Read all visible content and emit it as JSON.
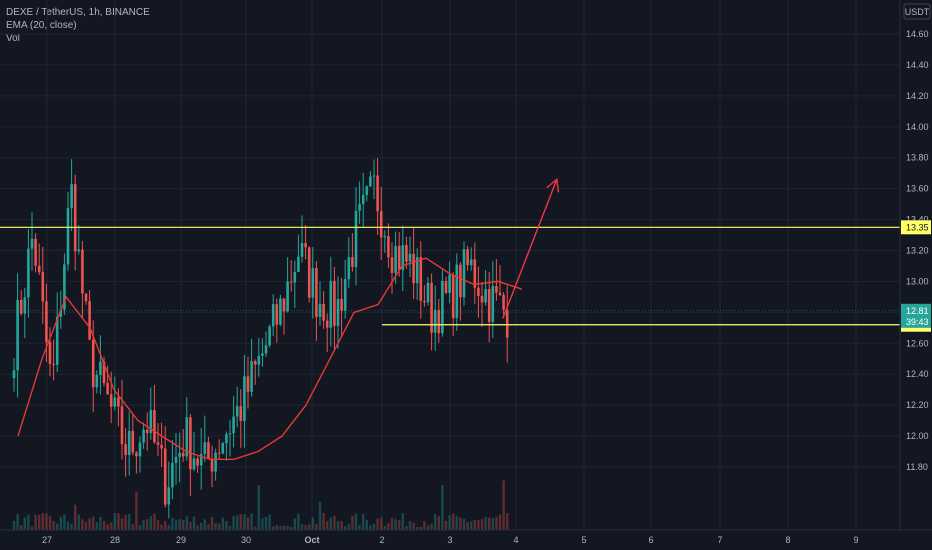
{
  "legend": {
    "symbol": "DEXE / TetherUS, 1h, BINANCE",
    "ema": "EMA (20, close)",
    "vol": "Vol"
  },
  "colors": {
    "background": "#131722",
    "up": "#26a69a",
    "down": "#ef5350",
    "ema": "#e53935",
    "level": "#ffff66",
    "arrow": "#f23645",
    "price_tag": "#26a69a"
  },
  "chart_data": {
    "type": "candlestick",
    "currency": "USDT",
    "y_ticks": [
      "14.60",
      "14.40",
      "14.20",
      "14.00",
      "13.80",
      "13.60",
      "13.40",
      "13.20",
      "13.00",
      "12.80",
      "12.60",
      "12.40",
      "12.20",
      "12.00",
      "11.80"
    ],
    "x_ticks": [
      "27",
      "28",
      "29",
      "30",
      "Oct",
      "2",
      "3",
      "4",
      "5",
      "6",
      "7",
      "8",
      "9"
    ],
    "ylim": [
      11.6,
      14.68
    ],
    "levels": [
      {
        "value": 13.35,
        "label": "13.35",
        "from": "26",
        "to": "end"
      },
      {
        "value": 12.72,
        "label": "12.72",
        "from": "2",
        "to": "end"
      }
    ],
    "current_price": {
      "value": 12.81,
      "label": "12.81",
      "countdown": "39:43"
    },
    "projection_arrow": {
      "from": {
        "x": "3.8",
        "y": 12.76
      },
      "to": {
        "x": "4.6",
        "y": 13.66
      }
    },
    "candles_close_approx": [
      12.6,
      13.3,
      12.3,
      13.6,
      12.5,
      12.2,
      11.9,
      12.1,
      11.7,
      12.0,
      11.8,
      12.0,
      12.2,
      12.5,
      12.8,
      13.2,
      12.9,
      12.8,
      13.3,
      13.6,
      13.2,
      13.1,
      12.8,
      12.9,
      13.1,
      12.9,
      12.8
    ],
    "ema_approx": [
      12.0,
      12.5,
      12.9,
      12.7,
      12.3,
      12.1,
      12.0,
      11.9,
      11.85,
      11.85,
      11.9,
      12.0,
      12.2,
      12.5,
      12.8,
      12.85,
      13.1,
      13.15,
      13.05,
      12.98,
      13.0,
      12.95
    ]
  }
}
